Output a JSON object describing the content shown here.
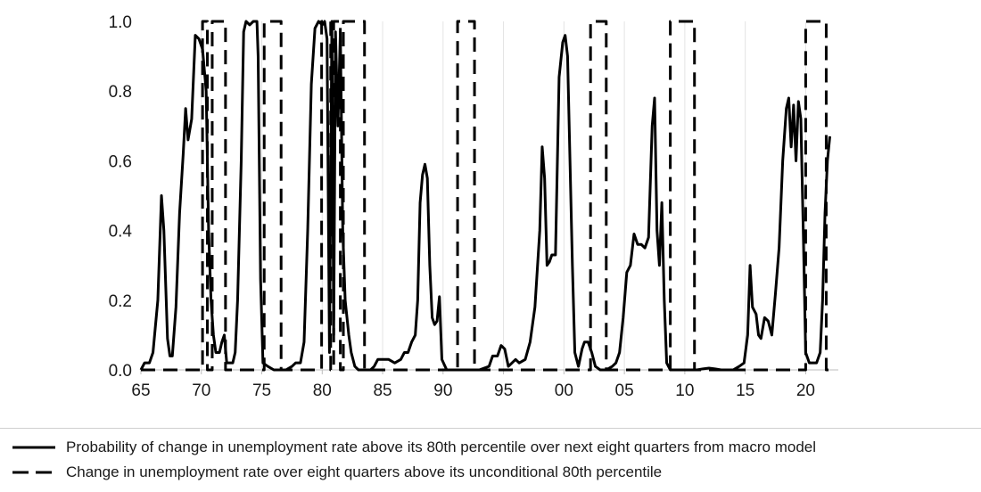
{
  "chart_data": {
    "type": "line",
    "title": "",
    "xlabel": "",
    "ylabel": "",
    "xlim": [
      1965,
      2022.7
    ],
    "ylim": [
      0,
      1
    ],
    "grid": "vertical",
    "legend_placement": "bottom",
    "x_ticks": [
      {
        "value": 1965,
        "label": "65"
      },
      {
        "value": 1970,
        "label": "70"
      },
      {
        "value": 1975,
        "label": "75"
      },
      {
        "value": 1980,
        "label": "80"
      },
      {
        "value": 1985,
        "label": "85"
      },
      {
        "value": 1990,
        "label": "90"
      },
      {
        "value": 1995,
        "label": "95"
      },
      {
        "value": 2000,
        "label": "00"
      },
      {
        "value": 2005,
        "label": "05"
      },
      {
        "value": 2010,
        "label": "10"
      },
      {
        "value": 2015,
        "label": "15"
      },
      {
        "value": 2020,
        "label": "20"
      }
    ],
    "y_ticks": [
      {
        "value": 0,
        "label": "0.0"
      },
      {
        "value": 0.2,
        "label": "0.2"
      },
      {
        "value": 0.4,
        "label": "0.4"
      },
      {
        "value": 0.6,
        "label": "0.6"
      },
      {
        "value": 0.8,
        "label": "0.8"
      },
      {
        "value": 1.0,
        "label": "1.0"
      }
    ],
    "series": [
      {
        "name": "Probability of change in unemployment rate above its 80th percentile over next eight quarters from macro model",
        "style": "solid",
        "color": "#000000",
        "points": [
          [
            1965.0,
            0.0
          ],
          [
            1965.3,
            0.02
          ],
          [
            1965.7,
            0.02
          ],
          [
            1966.0,
            0.05
          ],
          [
            1966.4,
            0.2
          ],
          [
            1966.7,
            0.5
          ],
          [
            1966.9,
            0.4
          ],
          [
            1967.2,
            0.09
          ],
          [
            1967.4,
            0.04
          ],
          [
            1967.6,
            0.04
          ],
          [
            1967.9,
            0.18
          ],
          [
            1968.2,
            0.45
          ],
          [
            1968.5,
            0.62
          ],
          [
            1968.7,
            0.75
          ],
          [
            1968.9,
            0.66
          ],
          [
            1969.2,
            0.72
          ],
          [
            1969.5,
            0.96
          ],
          [
            1969.8,
            0.95
          ],
          [
            1970.1,
            0.92
          ],
          [
            1970.4,
            0.8
          ],
          [
            1970.6,
            0.4
          ],
          [
            1970.8,
            0.2
          ],
          [
            1971.0,
            0.1
          ],
          [
            1971.2,
            0.05
          ],
          [
            1971.5,
            0.05
          ],
          [
            1971.7,
            0.08
          ],
          [
            1971.9,
            0.1
          ],
          [
            1972.1,
            0.02
          ],
          [
            1972.3,
            0.02
          ],
          [
            1972.6,
            0.02
          ],
          [
            1972.8,
            0.05
          ],
          [
            1973.0,
            0.2
          ],
          [
            1973.3,
            0.6
          ],
          [
            1973.5,
            0.97
          ],
          [
            1973.7,
            1.0
          ],
          [
            1974.0,
            0.99
          ],
          [
            1974.3,
            1.0
          ],
          [
            1974.6,
            1.0
          ],
          [
            1974.7,
            0.9
          ],
          [
            1974.9,
            0.26
          ],
          [
            1975.1,
            0.02
          ],
          [
            1975.5,
            0.01
          ],
          [
            1976.0,
            0.0
          ],
          [
            1977.0,
            0.0
          ],
          [
            1977.5,
            0.01
          ],
          [
            1977.8,
            0.02
          ],
          [
            1978.2,
            0.02
          ],
          [
            1978.5,
            0.08
          ],
          [
            1978.8,
            0.4
          ],
          [
            1979.1,
            0.82
          ],
          [
            1979.4,
            0.98
          ],
          [
            1979.7,
            1.0
          ],
          [
            1980.0,
            0.99
          ],
          [
            1980.2,
            1.0
          ],
          [
            1980.4,
            0.95
          ],
          [
            1980.6,
            0.05
          ],
          [
            1980.8,
            1.0
          ],
          [
            1980.95,
            0.1
          ],
          [
            1981.1,
            0.97
          ],
          [
            1981.3,
            0.7
          ],
          [
            1981.5,
            0.97
          ],
          [
            1981.7,
            0.4
          ],
          [
            1981.9,
            0.2
          ],
          [
            1982.2,
            0.1
          ],
          [
            1982.4,
            0.05
          ],
          [
            1982.7,
            0.01
          ],
          [
            1983.0,
            0.0
          ],
          [
            1984.0,
            0.0
          ],
          [
            1984.3,
            0.01
          ],
          [
            1984.6,
            0.03
          ],
          [
            1985.0,
            0.03
          ],
          [
            1985.5,
            0.03
          ],
          [
            1986.0,
            0.02
          ],
          [
            1986.5,
            0.03
          ],
          [
            1986.8,
            0.05
          ],
          [
            1987.1,
            0.05
          ],
          [
            1987.4,
            0.08
          ],
          [
            1987.7,
            0.1
          ],
          [
            1987.9,
            0.2
          ],
          [
            1988.1,
            0.48
          ],
          [
            1988.3,
            0.56
          ],
          [
            1988.5,
            0.59
          ],
          [
            1988.7,
            0.55
          ],
          [
            1988.9,
            0.3
          ],
          [
            1989.1,
            0.15
          ],
          [
            1989.3,
            0.13
          ],
          [
            1989.5,
            0.14
          ],
          [
            1989.7,
            0.21
          ],
          [
            1989.9,
            0.03
          ],
          [
            1990.3,
            0.0
          ],
          [
            1991.0,
            0.0
          ],
          [
            1992.0,
            0.0
          ],
          [
            1993.0,
            0.0
          ],
          [
            1993.8,
            0.01
          ],
          [
            1994.1,
            0.04
          ],
          [
            1994.5,
            0.04
          ],
          [
            1994.8,
            0.07
          ],
          [
            1995.1,
            0.06
          ],
          [
            1995.4,
            0.01
          ],
          [
            1995.7,
            0.02
          ],
          [
            1996.0,
            0.03
          ],
          [
            1996.3,
            0.02
          ],
          [
            1996.8,
            0.03
          ],
          [
            1997.2,
            0.08
          ],
          [
            1997.6,
            0.18
          ],
          [
            1998.0,
            0.4
          ],
          [
            1998.2,
            0.64
          ],
          [
            1998.4,
            0.55
          ],
          [
            1998.6,
            0.3
          ],
          [
            1998.8,
            0.31
          ],
          [
            1999.0,
            0.33
          ],
          [
            1999.3,
            0.33
          ],
          [
            1999.6,
            0.84
          ],
          [
            1999.9,
            0.94
          ],
          [
            2000.1,
            0.96
          ],
          [
            2000.3,
            0.9
          ],
          [
            2000.5,
            0.6
          ],
          [
            2000.7,
            0.3
          ],
          [
            2000.9,
            0.05
          ],
          [
            2001.2,
            0.01
          ],
          [
            2001.5,
            0.06
          ],
          [
            2001.7,
            0.08
          ],
          [
            2002.0,
            0.08
          ],
          [
            2002.3,
            0.05
          ],
          [
            2002.6,
            0.01
          ],
          [
            2003.0,
            0.0
          ],
          [
            2003.5,
            0.0
          ],
          [
            2004.0,
            0.01
          ],
          [
            2004.3,
            0.02
          ],
          [
            2004.6,
            0.05
          ],
          [
            2004.9,
            0.15
          ],
          [
            2005.2,
            0.28
          ],
          [
            2005.5,
            0.3
          ],
          [
            2005.8,
            0.39
          ],
          [
            2006.1,
            0.36
          ],
          [
            2006.4,
            0.36
          ],
          [
            2006.7,
            0.35
          ],
          [
            2007.0,
            0.38
          ],
          [
            2007.3,
            0.7
          ],
          [
            2007.5,
            0.78
          ],
          [
            2007.7,
            0.4
          ],
          [
            2007.9,
            0.3
          ],
          [
            2008.1,
            0.48
          ],
          [
            2008.3,
            0.2
          ],
          [
            2008.5,
            0.02
          ],
          [
            2008.8,
            0.0
          ],
          [
            2009.5,
            0.0
          ],
          [
            2010.5,
            0.0
          ],
          [
            2011.0,
            0.0
          ],
          [
            2011.5,
            0.003
          ],
          [
            2012.0,
            0.005
          ],
          [
            2012.5,
            0.003
          ],
          [
            2013.0,
            0.0
          ],
          [
            2014.0,
            0.0
          ],
          [
            2014.5,
            0.01
          ],
          [
            2014.9,
            0.02
          ],
          [
            2015.2,
            0.1
          ],
          [
            2015.4,
            0.3
          ],
          [
            2015.6,
            0.18
          ],
          [
            2015.9,
            0.16
          ],
          [
            2016.1,
            0.1
          ],
          [
            2016.3,
            0.09
          ],
          [
            2016.6,
            0.15
          ],
          [
            2016.9,
            0.14
          ],
          [
            2017.2,
            0.1
          ],
          [
            2017.5,
            0.22
          ],
          [
            2017.8,
            0.35
          ],
          [
            2018.1,
            0.6
          ],
          [
            2018.4,
            0.75
          ],
          [
            2018.6,
            0.78
          ],
          [
            2018.8,
            0.64
          ],
          [
            2019.0,
            0.76
          ],
          [
            2019.2,
            0.6
          ],
          [
            2019.4,
            0.77
          ],
          [
            2019.6,
            0.72
          ],
          [
            2019.8,
            0.4
          ],
          [
            2020.0,
            0.05
          ],
          [
            2020.3,
            0.02
          ],
          [
            2020.6,
            0.02
          ],
          [
            2020.9,
            0.02
          ],
          [
            2021.2,
            0.05
          ],
          [
            2021.4,
            0.2
          ],
          [
            2021.6,
            0.45
          ],
          [
            2021.8,
            0.6
          ],
          [
            2022.0,
            0.67
          ]
        ]
      },
      {
        "name": "Change in unemployment rate over eight quarters above its unconditional 80th percentile",
        "style": "dashed",
        "color": "#000000",
        "points": [
          [
            1965.0,
            0
          ],
          [
            1970.1,
            0
          ],
          [
            1970.1,
            1
          ],
          [
            1970.5,
            1
          ],
          [
            1970.5,
            0
          ],
          [
            1970.9,
            0
          ],
          [
            1970.9,
            1
          ],
          [
            1972.0,
            1
          ],
          [
            1972.0,
            0
          ],
          [
            1975.2,
            0
          ],
          [
            1975.2,
            1
          ],
          [
            1976.6,
            1
          ],
          [
            1976.6,
            0
          ],
          [
            1979.95,
            0
          ],
          [
            1979.95,
            1
          ],
          [
            1980.7,
            1
          ],
          [
            1980.7,
            0
          ],
          [
            1980.95,
            0
          ],
          [
            1980.95,
            1
          ],
          [
            1981.5,
            1
          ],
          [
            1981.5,
            0
          ],
          [
            1981.75,
            0
          ],
          [
            1981.75,
            1
          ],
          [
            1983.5,
            1
          ],
          [
            1983.5,
            0
          ],
          [
            1991.2,
            0
          ],
          [
            1991.2,
            1
          ],
          [
            1992.6,
            1
          ],
          [
            1992.6,
            0
          ],
          [
            2002.2,
            0
          ],
          [
            2002.2,
            1
          ],
          [
            2003.5,
            1
          ],
          [
            2003.5,
            0
          ],
          [
            2008.8,
            0
          ],
          [
            2008.8,
            1
          ],
          [
            2010.8,
            1
          ],
          [
            2010.8,
            0
          ],
          [
            2020.0,
            0
          ],
          [
            2020.0,
            1
          ],
          [
            2021.7,
            1
          ],
          [
            2021.7,
            0
          ],
          [
            2022.0,
            0
          ]
        ]
      }
    ]
  }
}
